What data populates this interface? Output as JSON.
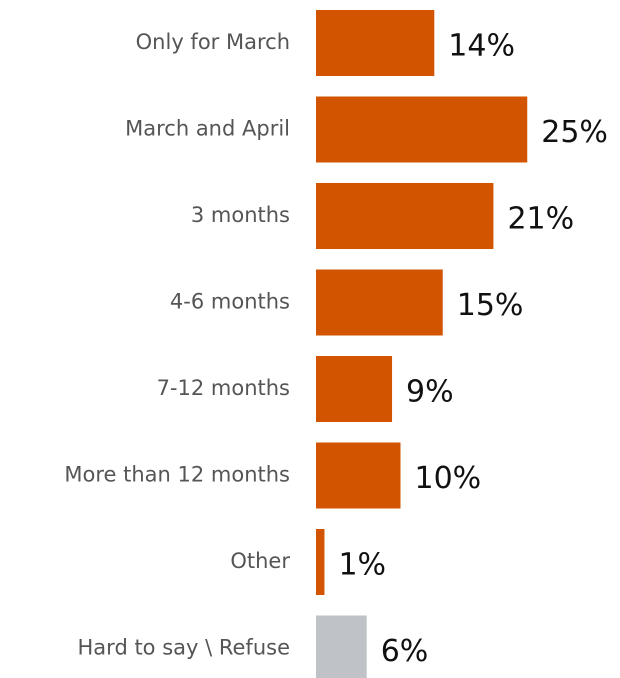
{
  "chart_data": {
    "type": "barh",
    "categories": [
      "Only for March",
      "March and April",
      "3 months",
      "4-6 months",
      "7-12 months",
      "More than 12 months",
      "Other",
      "Hard to say \\ Refuse"
    ],
    "values": [
      14,
      25,
      21,
      15,
      9,
      10,
      1,
      6
    ],
    "value_labels": [
      "14%",
      "25%",
      "21%",
      "15%",
      "9%",
      "10%",
      "1%",
      "6%"
    ],
    "colors": [
      "#d35400",
      "#d35400",
      "#d35400",
      "#d35400",
      "#d35400",
      "#d35400",
      "#d35400",
      "#bfc3c7"
    ]
  }
}
